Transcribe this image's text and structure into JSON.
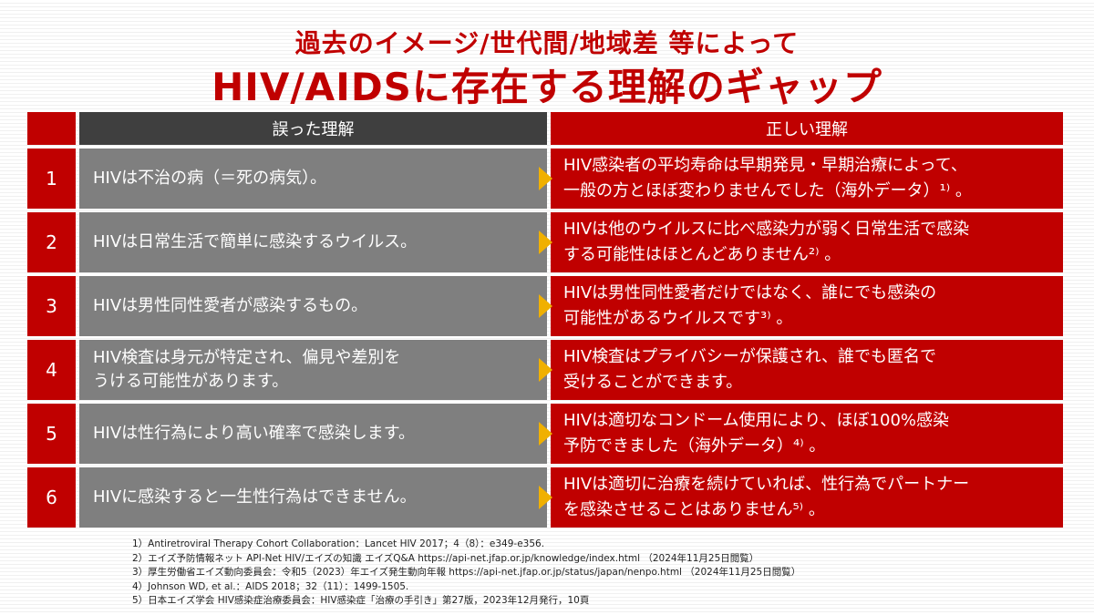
{
  "header": {
    "subtitle": "過去のイメージ/世代間/地域差 等によって",
    "title": "HIV/AIDSに存在する理解のギャップ"
  },
  "table": {
    "col_wrong": "誤った理解",
    "col_right": "正しい理解",
    "rows": [
      {
        "num": "1",
        "wrong": "HIVは不治の病（＝死の病気）。",
        "right": "HIV感染者の平均寿命は早期発見・早期治療によって、\n一般の方とほぼ変わりませんでした（海外データ）¹⁾ 。"
      },
      {
        "num": "2",
        "wrong": "HIVは日常生活で簡単に感染するウイルス。",
        "right": "HIVは他のウイルスに比べ感染力が弱く日常生活で感染\nする可能性はほとんどありません²⁾ 。"
      },
      {
        "num": "3",
        "wrong": "HIVは男性同性愛者が感染するもの。",
        "right": "HIVは男性同性愛者だけではなく、誰にでも感染の\n可能性があるウイルスです³⁾ 。"
      },
      {
        "num": "4",
        "wrong": "HIV検査は身元が特定され、偏見や差別を\nうける可能性があります。",
        "right": "HIV検査はプライバシーが保護され、誰でも匿名で\n受けることができます。"
      },
      {
        "num": "5",
        "wrong": "HIVは性行為により高い確率で感染します。",
        "right": "HIVは適切なコンドーム使用により、ほぼ100%感染\n予防できました（海外データ）⁴⁾ 。"
      },
      {
        "num": "6",
        "wrong": "HIVに感染すると一生性行為はできません。",
        "right": "HIVは適切に治療を続けていれば、性行為でパートナー\nを感染させることはありません⁵⁾ 。"
      }
    ]
  },
  "references": [
    "1）Antiretroviral Therapy Cohort Collaboration：Lancet HIV 2017；4（8）：e349-e356.",
    "2）エイズ予防情報ネット API-Net HIV/エイズの知識 エイズQ&A https://api-net.jfap.or.jp/knowledge/index.html （2024年11月25日閲覧）",
    "3）厚生労働省エイズ動向委員会：令和5（2023）年エイズ発生動向年報 https://api-net.jfap.or.jp/status/japan/nenpo.html （2024年11月25日閲覧）",
    "4）Johnson WD, et al.：AIDS 2018；32（11）：1499-1505.",
    "5）日本エイズ学会 HIV感染症治療委員会：HIV感染症「治療の手引き」第27版，2023年12月発行，10頁"
  ],
  "colors": {
    "accent": "#c00000",
    "header_dark": "#3f3f3f",
    "gray_cell": "#7f7f7f",
    "arrow": "#f0b000"
  }
}
